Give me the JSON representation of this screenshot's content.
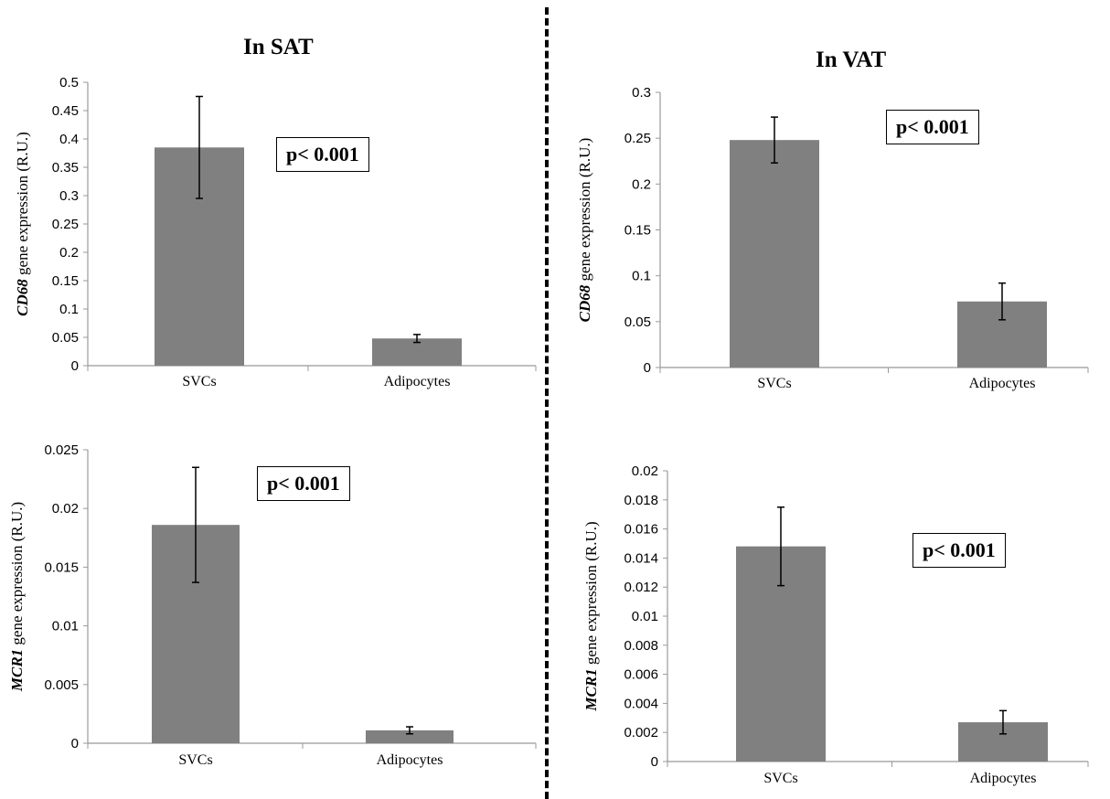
{
  "panel_titles": {
    "left": "In SAT",
    "right": "In VAT"
  },
  "colors": {
    "bar": "#808080",
    "axis": "#999999",
    "text": "#000000"
  },
  "chart_data": [
    {
      "type": "bar",
      "title": "",
      "categories": [
        "SVCs",
        "Adipocytes"
      ],
      "values": [
        0.385,
        0.048
      ],
      "error": [
        0.09,
        0.007
      ],
      "ylabel_italic": "CD68",
      "ylabel_rest": " gene expression  (R.U.)",
      "ylim": [
        0,
        0.5
      ],
      "yticks": [
        "0",
        "0.05",
        "0.1",
        "0.15",
        "0.2",
        "0.25",
        "0.3",
        "0.35",
        "0.4",
        "0.45",
        "0.5"
      ],
      "annotation": "p< 0.001"
    },
    {
      "type": "bar",
      "title": "",
      "categories": [
        "SVCs",
        "Adipocytes"
      ],
      "values": [
        0.248,
        0.072
      ],
      "error": [
        0.025,
        0.02
      ],
      "ylabel_italic": "CD68",
      "ylabel_rest": " gene expression  (R.U.)",
      "ylim": [
        0,
        0.3
      ],
      "yticks": [
        "0",
        "0.05",
        "0.1",
        "0.15",
        "0.2",
        "0.25",
        "0.3"
      ],
      "annotation": "p< 0.001"
    },
    {
      "type": "bar",
      "title": "",
      "categories": [
        "SVCs",
        "Adipocytes"
      ],
      "values": [
        0.0186,
        0.0011
      ],
      "error": [
        0.0049,
        0.0003
      ],
      "ylabel_italic": "MCR1",
      "ylabel_rest": " gene expression (R.U.)",
      "ylim": [
        0,
        0.025
      ],
      "yticks": [
        "0",
        "0.005",
        "0.01",
        "0.015",
        "0.02",
        "0.025"
      ],
      "annotation": "p< 0.001"
    },
    {
      "type": "bar",
      "title": "",
      "categories": [
        "SVCs",
        "Adipocytes"
      ],
      "values": [
        0.0148,
        0.0027
      ],
      "error": [
        0.0027,
        0.0008
      ],
      "ylabel_italic": "MCR1",
      "ylabel_rest": " gene expression (R.U.)",
      "ylim": [
        0,
        0.02
      ],
      "yticks": [
        "0",
        "0.002",
        "0.004",
        "0.006",
        "0.008",
        "0.01",
        "0.012",
        "0.014",
        "0.016",
        "0.018",
        "0.02"
      ],
      "annotation": "p< 0.001"
    }
  ]
}
